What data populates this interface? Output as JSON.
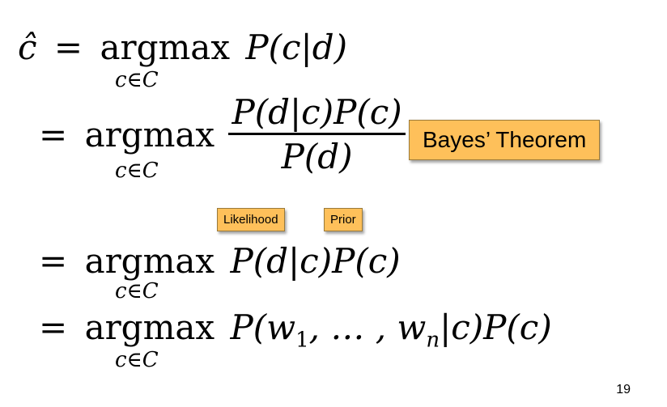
{
  "equations": {
    "line1": {
      "lhs": "ĉ",
      "eq": "=",
      "op": "argmax",
      "sub": "c∈C",
      "expr": "P(c|d)"
    },
    "line2": {
      "eq": "=",
      "op": "argmax",
      "sub": "c∈C",
      "numerator": "P(d|c)P(c)",
      "denominator": "P(d)"
    },
    "line3": {
      "eq": "=",
      "op": "argmax",
      "sub": "c∈C",
      "expr": "P(d|c)P(c)"
    },
    "line4": {
      "eq": "=",
      "op": "argmax",
      "sub": "c∈C",
      "expr_pre": "P(w",
      "sub1": "1",
      "expr_mid": ", … , w",
      "subn": "n",
      "expr_post": "|c)P(c)"
    }
  },
  "annotations": {
    "bayes": "Bayes’ Theorem",
    "likelihood": "Likelihood",
    "prior": "Prior"
  },
  "colors": {
    "note_bg": "#FEC05A"
  },
  "page_number": "19"
}
